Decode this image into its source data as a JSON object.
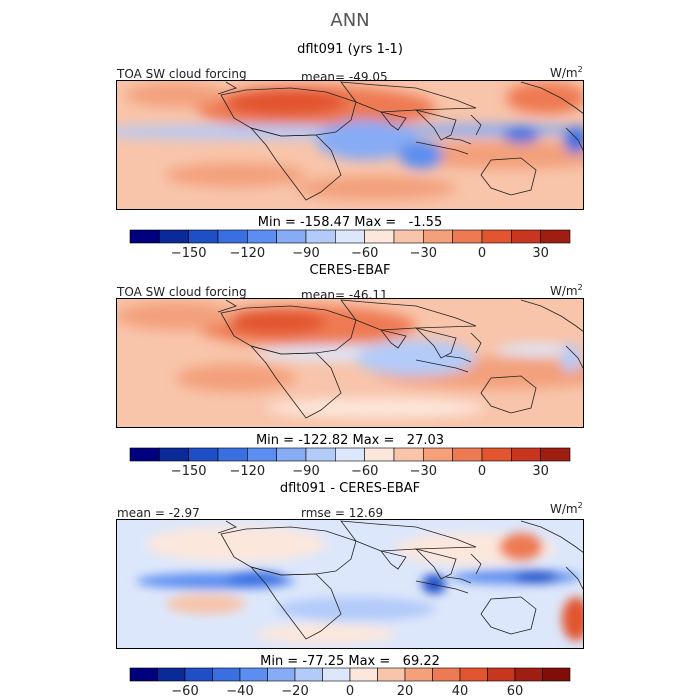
{
  "page_title": "ANN",
  "chart_data": [
    {
      "type": "heatmap",
      "title": "dflt091 (yrs 1-1)",
      "variable_label": "TOA SW cloud forcing",
      "stat_label": "mean= -49.05",
      "units_text": "W/m",
      "units_exp": "2",
      "minmax_text": "Min = -158.47 Max =   -1.55",
      "colorbar": {
        "ticks": [
          -150,
          -120,
          -90,
          -60,
          -30,
          0,
          30
        ],
        "tick_labels": [
          "−150",
          "−120",
          "−90",
          "−60",
          "−30",
          "0",
          "30"
        ],
        "range": [
          -180,
          45
        ],
        "colors": [
          "#00007f",
          "#0a2a9a",
          "#1f4fc7",
          "#3a6fe2",
          "#5b8ef0",
          "#87acf5",
          "#b3cbf9",
          "#dde7fb",
          "#fce7dc",
          "#f8c4aa",
          "#f3a07b",
          "#ee7a53",
          "#e2552f",
          "#c93620",
          "#a01d12"
        ]
      }
    },
    {
      "type": "heatmap",
      "title": "CERES-EBAF",
      "variable_label": "TOA SW cloud forcing",
      "stat_label": "mean= -46.11",
      "units_text": "W/m",
      "units_exp": "2",
      "minmax_text": "Min = -122.82 Max =   27.03",
      "colorbar": {
        "ticks": [
          -150,
          -120,
          -90,
          -60,
          -30,
          0,
          30
        ],
        "tick_labels": [
          "−150",
          "−120",
          "−90",
          "−60",
          "−30",
          "0",
          "30"
        ],
        "range": [
          -180,
          45
        ],
        "colors": [
          "#00007f",
          "#0a2a9a",
          "#1f4fc7",
          "#3a6fe2",
          "#5b8ef0",
          "#87acf5",
          "#b3cbf9",
          "#dde7fb",
          "#fce7dc",
          "#f8c4aa",
          "#f3a07b",
          "#ee7a53",
          "#e2552f",
          "#c93620",
          "#a01d12"
        ]
      }
    },
    {
      "type": "heatmap",
      "title": "dflt091 - CERES-EBAF",
      "variable_label": "mean = -2.97",
      "stat_label": "rmse = 12.69",
      "units_text": "W/m",
      "units_exp": "2",
      "minmax_text": "Min = -77.25 Max =   69.22",
      "colorbar": {
        "ticks": [
          -60,
          -40,
          -20,
          0,
          20,
          40,
          60
        ],
        "tick_labels": [
          "−60",
          "−40",
          "−20",
          "0",
          "20",
          "40",
          "60"
        ],
        "range": [
          -80,
          80
        ],
        "colors": [
          "#00007f",
          "#0a2a9a",
          "#1f4fc7",
          "#3a6fe2",
          "#5b8ef0",
          "#87acf5",
          "#b3cbf9",
          "#dde7fb",
          "#fce7dc",
          "#f8c4aa",
          "#f3a07b",
          "#ee7a53",
          "#e2552f",
          "#c93620",
          "#a01d12",
          "#800d08"
        ]
      }
    }
  ]
}
